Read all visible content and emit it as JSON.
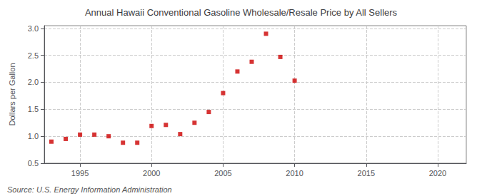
{
  "chart_data": {
    "type": "scatter",
    "title": "Annual Hawaii Conventional Gasoline Wholesale/Resale Price by All Sellers",
    "ylabel": "Dollars per Gallon",
    "annotations": [
      "Source: U.S. Energy Information Administration"
    ],
    "x": [
      1993,
      1994,
      1995,
      1996,
      1997,
      1998,
      1999,
      2000,
      2001,
      2002,
      2003,
      2004,
      2005,
      2006,
      2007,
      2008,
      2009,
      2010
    ],
    "values": [
      0.9,
      0.95,
      1.03,
      1.03,
      1.0,
      0.88,
      0.88,
      1.19,
      1.21,
      1.04,
      1.25,
      1.45,
      1.8,
      2.2,
      2.38,
      2.9,
      2.47,
      2.03
    ],
    "color": "#cc0000",
    "marker": "square",
    "xlim": [
      1992.5,
      2022
    ],
    "xticks": [
      1995,
      2000,
      2005,
      2010,
      2015,
      2020
    ],
    "ylim": [
      0.5,
      3.05
    ],
    "yticks": [
      0.5,
      {
        "value": 1.0,
        "label": "1.0"
      },
      1.5,
      {
        "value": 2.0,
        "label": "2.0"
      },
      2.5,
      {
        "value": 3.0,
        "label": "3.0"
      }
    ],
    "grid": true
  }
}
